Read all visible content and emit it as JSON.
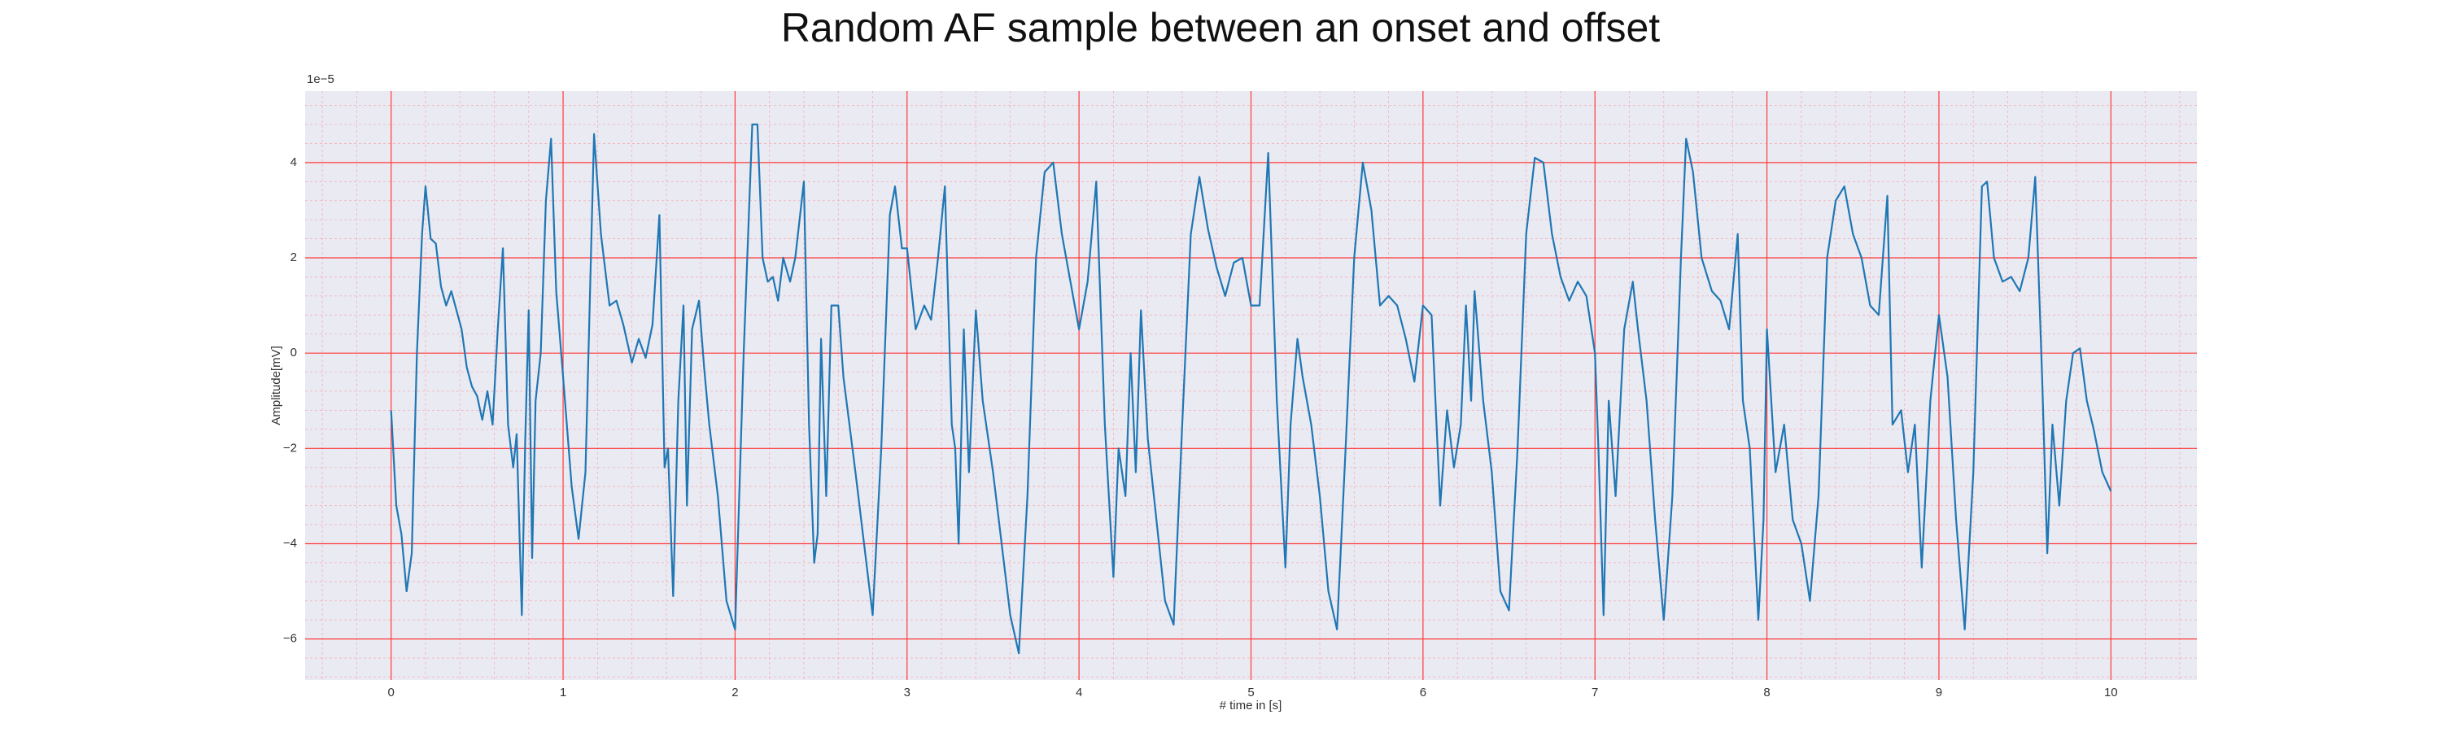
{
  "chart_data": {
    "type": "line",
    "title": "Random AF sample between an onset and offset",
    "xlabel": "# time in [s]",
    "ylabel": "Amplitude[mV]",
    "y_offset_label": "1e−5",
    "color": "#1f77b4",
    "grid": true,
    "minor_grid": true,
    "xlim": [
      -0.5,
      10.5
    ],
    "ylim": [
      -6.86,
      5.5
    ],
    "xticks": [
      0,
      1,
      2,
      3,
      4,
      5,
      6,
      7,
      8,
      9,
      10
    ],
    "yticks": [
      {
        "value": -6,
        "label": "−6"
      },
      {
        "value": -4,
        "label": "−4"
      },
      {
        "value": -2,
        "label": "−2"
      },
      0,
      2,
      4
    ],
    "x": [
      0.0,
      0.03,
      0.06,
      0.09,
      0.12,
      0.15,
      0.18,
      0.2,
      0.23,
      0.26,
      0.29,
      0.32,
      0.35,
      0.38,
      0.41,
      0.44,
      0.47,
      0.5,
      0.53,
      0.56,
      0.59,
      0.62,
      0.65,
      0.68,
      0.71,
      0.73,
      0.76,
      0.78,
      0.8,
      0.82,
      0.84,
      0.87,
      0.9,
      0.93,
      0.96,
      1.0,
      1.05,
      1.09,
      1.13,
      1.18,
      1.22,
      1.27,
      1.31,
      1.35,
      1.4,
      1.44,
      1.48,
      1.52,
      1.56,
      1.59,
      1.61,
      1.64,
      1.67,
      1.7,
      1.72,
      1.75,
      1.79,
      1.82,
      1.85,
      1.9,
      1.95,
      2.0,
      2.05,
      2.1,
      2.13,
      2.16,
      2.19,
      2.22,
      2.25,
      2.28,
      2.32,
      2.35,
      2.4,
      2.43,
      2.46,
      2.48,
      2.5,
      2.53,
      2.56,
      2.6,
      2.63,
      2.7,
      2.75,
      2.8,
      2.85,
      2.9,
      2.93,
      2.97,
      3.0,
      3.05,
      3.1,
      3.14,
      3.18,
      3.22,
      3.26,
      3.28,
      3.3,
      3.33,
      3.36,
      3.4,
      3.44,
      3.5,
      3.55,
      3.6,
      3.65,
      3.7,
      3.75,
      3.8,
      3.85,
      3.9,
      3.95,
      4.0,
      4.05,
      4.1,
      4.15,
      4.2,
      4.23,
      4.27,
      4.3,
      4.33,
      4.36,
      4.4,
      4.45,
      4.5,
      4.55,
      4.6,
      4.65,
      4.7,
      4.75,
      4.8,
      4.85,
      4.9,
      4.95,
      5.0,
      5.05,
      5.1,
      5.15,
      5.2,
      5.23,
      5.27,
      5.3,
      5.35,
      5.4,
      5.45,
      5.5,
      5.55,
      5.6,
      5.65,
      5.7,
      5.75,
      5.8,
      5.85,
      5.9,
      5.95,
      6.0,
      6.05,
      6.1,
      6.14,
      6.18,
      6.22,
      6.25,
      6.28,
      6.3,
      6.35,
      6.4,
      6.45,
      6.5,
      6.55,
      6.6,
      6.65,
      6.7,
      6.75,
      6.8,
      6.85,
      6.9,
      6.95,
      7.0,
      7.02,
      7.05,
      7.08,
      7.12,
      7.17,
      7.22,
      7.25,
      7.3,
      7.35,
      7.4,
      7.45,
      7.5,
      7.53,
      7.57,
      7.62,
      7.68,
      7.73,
      7.78,
      7.83,
      7.86,
      7.9,
      7.95,
      7.98,
      8.0,
      8.05,
      8.1,
      8.15,
      8.2,
      8.25,
      8.3,
      8.35,
      8.4,
      8.45,
      8.5,
      8.55,
      8.6,
      8.65,
      8.7,
      8.73,
      8.78,
      8.82,
      8.86,
      8.9,
      8.95,
      9.0,
      9.05,
      9.1,
      9.15,
      9.2,
      9.25,
      9.28,
      9.32,
      9.37,
      9.42,
      9.47,
      9.52,
      9.56,
      9.6,
      9.63,
      9.66,
      9.7,
      9.74,
      9.78,
      9.82,
      9.86,
      9.9,
      9.95,
      10.0
    ],
    "values": [
      -1.2,
      -3.2,
      -3.8,
      -5.0,
      -4.2,
      0,
      2.5,
      3.5,
      2.4,
      2.3,
      1.4,
      1.0,
      1.3,
      0.9,
      0.5,
      -0.3,
      -0.7,
      -0.9,
      -1.4,
      -0.8,
      -1.5,
      0.5,
      2.2,
      -1.5,
      -2.4,
      -1.7,
      -5.5,
      -1.8,
      0.9,
      -4.3,
      -1.0,
      0,
      3.2,
      4.5,
      1.3,
      -0.5,
      -2.8,
      -3.9,
      -2.5,
      4.6,
      2.5,
      1.0,
      1.1,
      0.6,
      -0.2,
      0.3,
      -0.1,
      0.6,
      2.9,
      -2.4,
      -2.0,
      -5.1,
      -1.0,
      1.0,
      -3.2,
      0.5,
      1.1,
      -0.3,
      -1.5,
      -3.0,
      -5.2,
      -5.8,
      0,
      4.8,
      4.8,
      2.0,
      1.5,
      1.6,
      1.1,
      2.0,
      1.5,
      2.0,
      3.6,
      -1.5,
      -4.4,
      -3.8,
      0.3,
      -3.0,
      1.0,
      1.0,
      -0.5,
      -2.5,
      -4.0,
      -5.5,
      -2.0,
      2.9,
      3.5,
      2.2,
      2.2,
      0.5,
      1.0,
      0.7,
      2.0,
      3.5,
      -1.5,
      -2.0,
      -4.0,
      0.5,
      -2.5,
      0.9,
      -1.0,
      -2.5,
      -4.0,
      -5.5,
      -6.3,
      -3.0,
      2.0,
      3.8,
      4.0,
      2.5,
      1.5,
      0.5,
      1.5,
      3.6,
      -1.5,
      -4.7,
      -2.0,
      -3.0,
      0,
      -2.5,
      0.9,
      -1.8,
      -3.5,
      -5.2,
      -5.7,
      -1.5,
      2.5,
      3.7,
      2.6,
      1.8,
      1.2,
      1.9,
      2.0,
      1.0,
      1.0,
      4.2,
      -1.0,
      -4.5,
      -1.5,
      0.3,
      -0.5,
      -1.5,
      -3.0,
      -5.0,
      -5.8,
      -2.0,
      2.0,
      4.0,
      3.0,
      1.0,
      1.2,
      1.0,
      0.3,
      -0.6,
      1.0,
      0.8,
      -3.2,
      -1.2,
      -2.4,
      -1.5,
      1.0,
      -1.0,
      1.3,
      -1.0,
      -2.5,
      -5.0,
      -5.4,
      -2.0,
      2.5,
      4.1,
      4.0,
      2.5,
      1.6,
      1.1,
      1.5,
      1.2,
      0,
      -2.0,
      -5.5,
      -1.0,
      -3.0,
      0.5,
      1.5,
      0.5,
      -1.0,
      -3.5,
      -5.6,
      -3.0,
      2.0,
      4.5,
      3.8,
      2.0,
      1.3,
      1.1,
      0.5,
      2.5,
      -1.0,
      -2.0,
      -5.6,
      -3.5,
      0.5,
      -2.5,
      -1.5,
      -3.5,
      -4.0,
      -5.2,
      -3.0,
      2.0,
      3.2,
      3.5,
      2.5,
      2.0,
      1.0,
      0.8,
      3.3,
      -1.5,
      -1.2,
      -2.5,
      -1.5,
      -4.5,
      -1.0,
      0.8,
      -0.5,
      -3.5,
      -5.8,
      -2.5,
      3.5,
      3.6,
      2.0,
      1.5,
      1.6,
      1.3,
      2.0,
      3.7,
      -0.5,
      -4.2,
      -1.5,
      -3.2,
      -1.0,
      0,
      0.1,
      -1.0,
      -1.6,
      -2.5,
      -2.9
    ]
  }
}
